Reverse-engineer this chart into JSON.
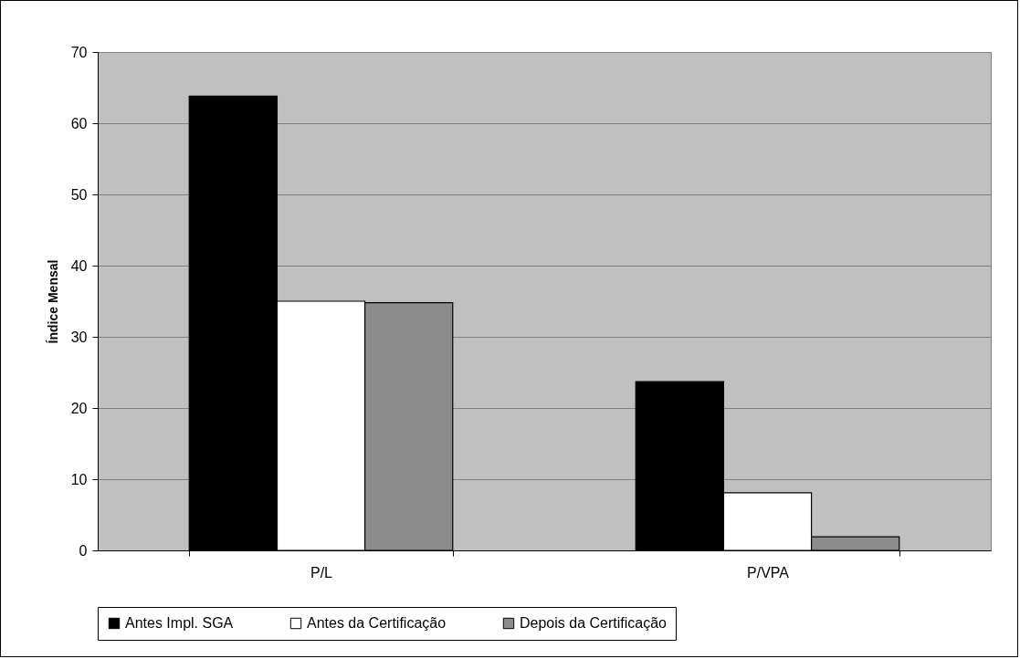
{
  "chart_data": {
    "type": "bar",
    "ylabel": "Índice Mensal",
    "categories": [
      "P/L",
      "P/VPA"
    ],
    "series": [
      {
        "name": "Antes Impl. SGA",
        "color": "#000000",
        "values": [
          63.8,
          23.7
        ]
      },
      {
        "name": "Antes da Certificação",
        "color": "#ffffff",
        "values": [
          35.0,
          8.1
        ]
      },
      {
        "name": "Depois da Certificação",
        "color": "#8c8c8c",
        "values": [
          34.8,
          1.9
        ]
      }
    ],
    "ylim": [
      0,
      70
    ],
    "yticks": [
      0,
      10,
      20,
      30,
      40,
      50,
      60,
      70
    ],
    "grid": "y",
    "legend": "bottom"
  }
}
